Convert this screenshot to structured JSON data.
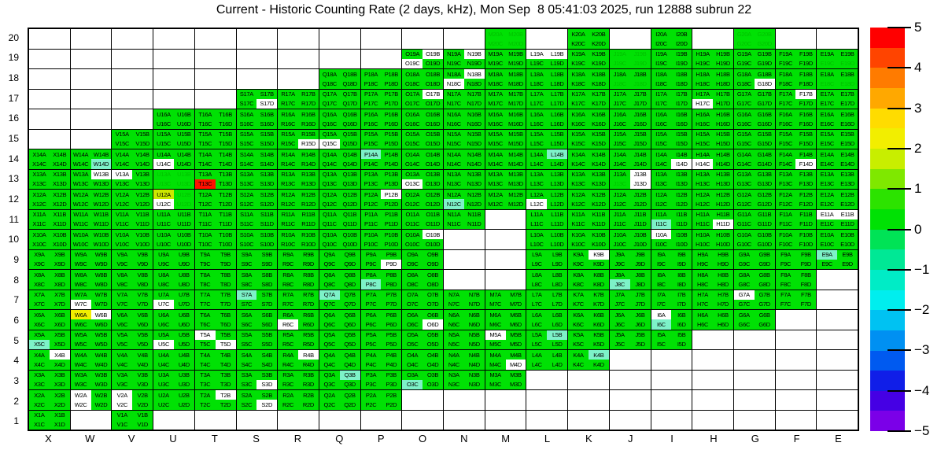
{
  "title": "Current - Historic Counting Rate (2 days, kHz), Mon Sep  8 05:41:03 2025, run 12888 subrun 22",
  "colors": {
    "green": "#00e104",
    "white": "#ffffff",
    "red": "#ff1000",
    "yellow": "#f2ee00",
    "yellow_green": "#cce800",
    "mint": "#7df2c8",
    "green_text": "#00c000",
    "black_text": "#000000"
  },
  "chart_data": {
    "type": "heatmap",
    "title": "Current - Historic Counting Rate (2 days, kHz), Mon Sep  8 05:41:03 2025, run 12888 subrun 22",
    "units": "kHz",
    "value_range": [
      -5,
      5
    ],
    "columns": [
      "X",
      "W",
      "V",
      "U",
      "T",
      "S",
      "R",
      "Q",
      "P",
      "O",
      "N",
      "M",
      "L",
      "K",
      "J",
      "I",
      "H",
      "G",
      "F",
      "E"
    ],
    "row_range": [
      1,
      20
    ],
    "quadrant_order": [
      "A",
      "B",
      "C",
      "D"
    ],
    "col_ranges": {
      "X": [
        1,
        14
      ],
      "W": [
        2,
        14
      ],
      "V": [
        1,
        15
      ],
      "U": [
        2,
        16
      ],
      "T": [
        2,
        16
      ],
      "S": [
        2,
        17
      ],
      "R": [
        2,
        17
      ],
      "Q": [
        2,
        18
      ],
      "P": [
        2,
        18
      ],
      "O": [
        3,
        19
      ],
      "N": [
        3,
        19
      ],
      "M": [
        3,
        20
      ],
      "L": [
        4,
        19
      ],
      "K": [
        4,
        20
      ],
      "J": [
        5,
        19
      ],
      "I": [
        5,
        20
      ],
      "H": [
        6,
        19
      ],
      "G": [
        6,
        20
      ],
      "F": [
        7,
        19
      ],
      "E": [
        9,
        19
      ]
    },
    "col_gaps": {
      "N": [
        8,
        10
      ],
      "M": [
        8,
        11
      ]
    },
    "default_band": "green (0 to 0.5)",
    "white_quadrants": [
      "L19A",
      "L19B",
      "N19B",
      "O19B",
      "O19C",
      "N18B",
      "N18C",
      "G18D",
      "O17B",
      "S17D",
      "H17C",
      "F17B",
      "R15D",
      "Q15C",
      "U14C",
      "I14D",
      "H14C",
      "F14D",
      "W13B",
      "V13A",
      "O13C",
      "J13B",
      "J13D",
      "U12C",
      "P12B",
      "L12C",
      "H11D",
      "E11A",
      "E11B",
      "O10B",
      "I10A",
      "P9D",
      "K9B",
      "W7C",
      "U7C",
      "G7A",
      "W6B",
      "R6C",
      "O6D",
      "I6A",
      "U5C",
      "T5A",
      "T5D",
      "M5A",
      "X4B",
      "R4B",
      "M4D",
      "S3D",
      "W2A",
      "W2C",
      "V2A",
      "V2C",
      "T2B",
      "S2D"
    ],
    "colored_quadrants": {
      "T13C": "red",
      "W6A": "yellow",
      "U12A": "yellow_green",
      "W14D": "mint",
      "P14A": "mint",
      "L14B": "mint",
      "N12C": "mint",
      "I11C": "mint",
      "E9A": "mint",
      "J8C": "mint",
      "P8C": "mint",
      "S7A": "mint",
      "Q7A": "mint",
      "I6C": "mint",
      "X5C": "mint",
      "L5B": "mint",
      "K4B": "mint",
      "Q3B": "mint",
      "O3C": "mint"
    },
    "green_text_quadrants": [
      "M20A",
      "M20B",
      "M20C",
      "M20D",
      "G20A",
      "G20B",
      "G20C",
      "G20D",
      "J19A",
      "J19B",
      "J19C",
      "J19D",
      "J18C",
      "J18D",
      "E19C",
      "E19D",
      "E18C",
      "E18D",
      "J13C",
      "U13A",
      "U13B",
      "U13C",
      "U13D",
      "U12B",
      "U12D"
    ],
    "colorbar": {
      "ticks": [
        5,
        4,
        3,
        2,
        1,
        0,
        -1,
        -2,
        -3,
        -4,
        -5
      ],
      "tick_labels": [
        "5",
        "4",
        "3",
        "2",
        "1",
        "0",
        "−1",
        "−2",
        "−3",
        "−4",
        "−5"
      ],
      "bands_top_to_bottom": [
        "#ff0000",
        "#ff4400",
        "#ff7b00",
        "#ffa800",
        "#ffdc00",
        "#f2ee00",
        "#c8ee00",
        "#7fe800",
        "#2ce300",
        "#00e104",
        "#00e356",
        "#00e895",
        "#00ecc6",
        "#00eeee",
        "#00c2f2",
        "#0090f2",
        "#005af0",
        "#101ee8",
        "#4500e4",
        "#7b00e8"
      ],
      "position": "right",
      "band_value_step": 0.5
    },
    "grid_lines": "on",
    "xlabel": "",
    "ylabel": ""
  },
  "axes": {
    "x_labels": [
      "X",
      "W",
      "V",
      "U",
      "T",
      "S",
      "R",
      "Q",
      "P",
      "O",
      "N",
      "M",
      "L",
      "K",
      "J",
      "I",
      "H",
      "G",
      "F",
      "E"
    ],
    "y_top_label": "20",
    "y_bottom_label": "1"
  }
}
